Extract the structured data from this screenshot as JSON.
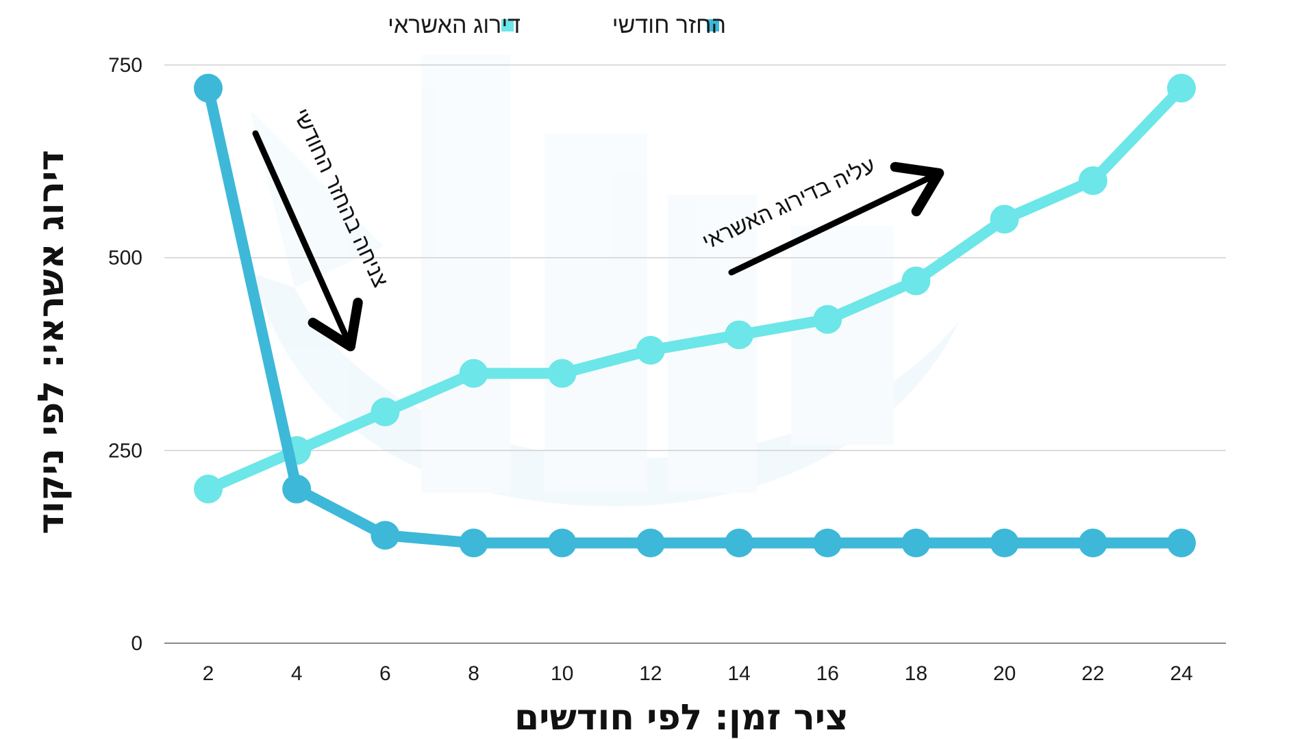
{
  "chart_data": {
    "type": "line",
    "title": "",
    "xlabel": "ציר זמן: לפי חודשים",
    "ylabel": "דירוג אשראי: לפי ניקוד",
    "x": [
      2,
      4,
      6,
      8,
      10,
      12,
      14,
      16,
      18,
      20,
      22,
      24
    ],
    "xticks": [
      "2",
      "4",
      "6",
      "8",
      "10",
      "12",
      "14",
      "16",
      "18",
      "20",
      "22",
      "24"
    ],
    "yticks": [
      "0",
      "250",
      "500",
      "750"
    ],
    "ylim": [
      0,
      750
    ],
    "grid": "horizontal",
    "legend_position": "top",
    "series": [
      {
        "name": "החזר חודשי",
        "color": "#3db8d8",
        "values": [
          720,
          200,
          140,
          130,
          130,
          130,
          130,
          130,
          130,
          130,
          130,
          130
        ]
      },
      {
        "name": "דירוג האשראי",
        "color": "#6ce6e8",
        "values": [
          200,
          250,
          300,
          350,
          350,
          380,
          400,
          420,
          470,
          550,
          600,
          720
        ]
      }
    ],
    "annotations": [
      {
        "text": "צניחה בהחזר החודשי",
        "arrow": "down"
      },
      {
        "text": "עליה בדירוג האשראי",
        "arrow": "up"
      }
    ]
  }
}
